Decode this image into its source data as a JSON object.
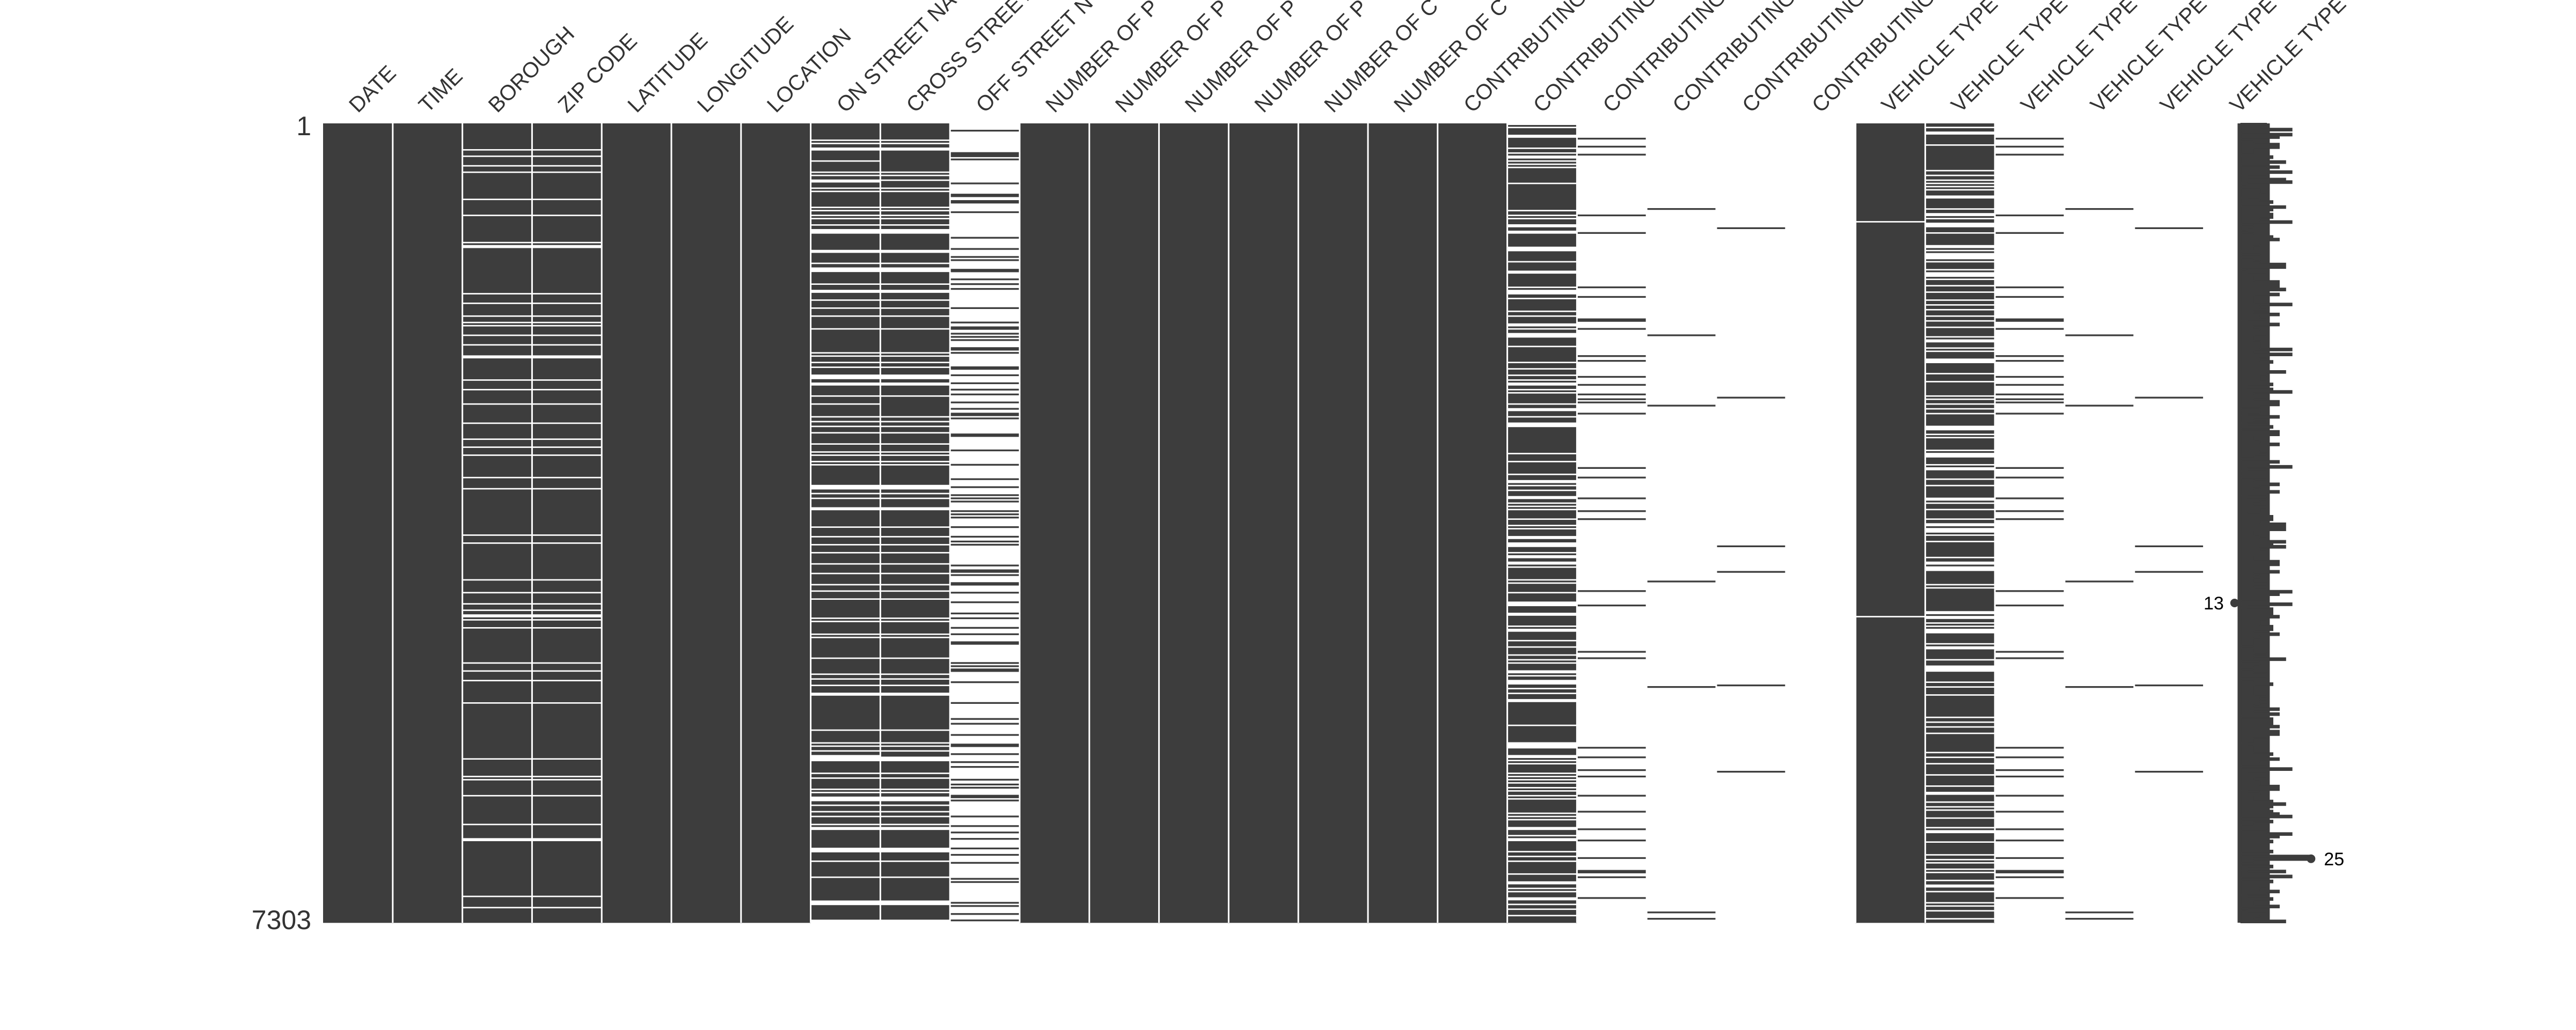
{
  "chart_data": {
    "type": "matrix",
    "title": "",
    "columns": [
      {
        "name": "DATE",
        "completeness": 1.0
      },
      {
        "name": "TIME",
        "completeness": 1.0
      },
      {
        "name": "BOROUGH",
        "completeness": 0.9
      },
      {
        "name": "ZIP CODE",
        "completeness": 0.9
      },
      {
        "name": "LATITUDE",
        "completeness": 1.0
      },
      {
        "name": "LONGITUDE",
        "completeness": 1.0
      },
      {
        "name": "LOCATION",
        "completeness": 1.0
      },
      {
        "name": "ON STREET NA",
        "completeness": 0.78
      },
      {
        "name": "CROSS STREET",
        "completeness": 0.78
      },
      {
        "name": "OFF STREET N",
        "completeness": 0.22
      },
      {
        "name": "NUMBER OF P",
        "completeness": 1.0
      },
      {
        "name": "NUMBER OF P",
        "completeness": 1.0
      },
      {
        "name": "NUMBER OF P",
        "completeness": 1.0
      },
      {
        "name": "NUMBER OF P",
        "completeness": 1.0
      },
      {
        "name": "NUMBER OF C",
        "completeness": 1.0
      },
      {
        "name": "NUMBER OF C",
        "completeness": 1.0
      },
      {
        "name": "CONTRIBUTING",
        "completeness": 1.0
      },
      {
        "name": "CONTRIBUTING",
        "completeness": 0.72
      },
      {
        "name": "CONTRIBUTING",
        "completeness": 0.06
      },
      {
        "name": "CONTRIBUTING",
        "completeness": 0.015
      },
      {
        "name": "CONTRIBUTING",
        "completeness": 0.004
      },
      {
        "name": "CONTRIBUTING",
        "completeness": 0.0
      },
      {
        "name": "VEHICLE TYPE",
        "completeness": 0.98
      },
      {
        "name": "VEHICLE TYPE",
        "completeness": 0.7
      },
      {
        "name": "VEHICLE TYPE",
        "completeness": 0.06
      },
      {
        "name": "VEHICLE TYPE",
        "completeness": 0.015
      },
      {
        "name": "VEHICLE TYPE",
        "completeness": 0.004
      },
      {
        "name": "VEHICLE TYPE",
        "completeness": 0.0
      }
    ],
    "row_range": [
      1,
      7303
    ],
    "row_labels": {
      "top": "1",
      "bottom": "7303"
    },
    "sparkline": {
      "min_label": "13",
      "max_label": "25",
      "min_value": 13,
      "max_value": 25,
      "min_row_fraction": 0.6,
      "max_row_fraction": 0.92,
      "value_range": [
        11,
        27
      ]
    },
    "colors": {
      "filled": "#3d3d3d",
      "missing": "#ffffff",
      "background": "#ffffff"
    }
  }
}
